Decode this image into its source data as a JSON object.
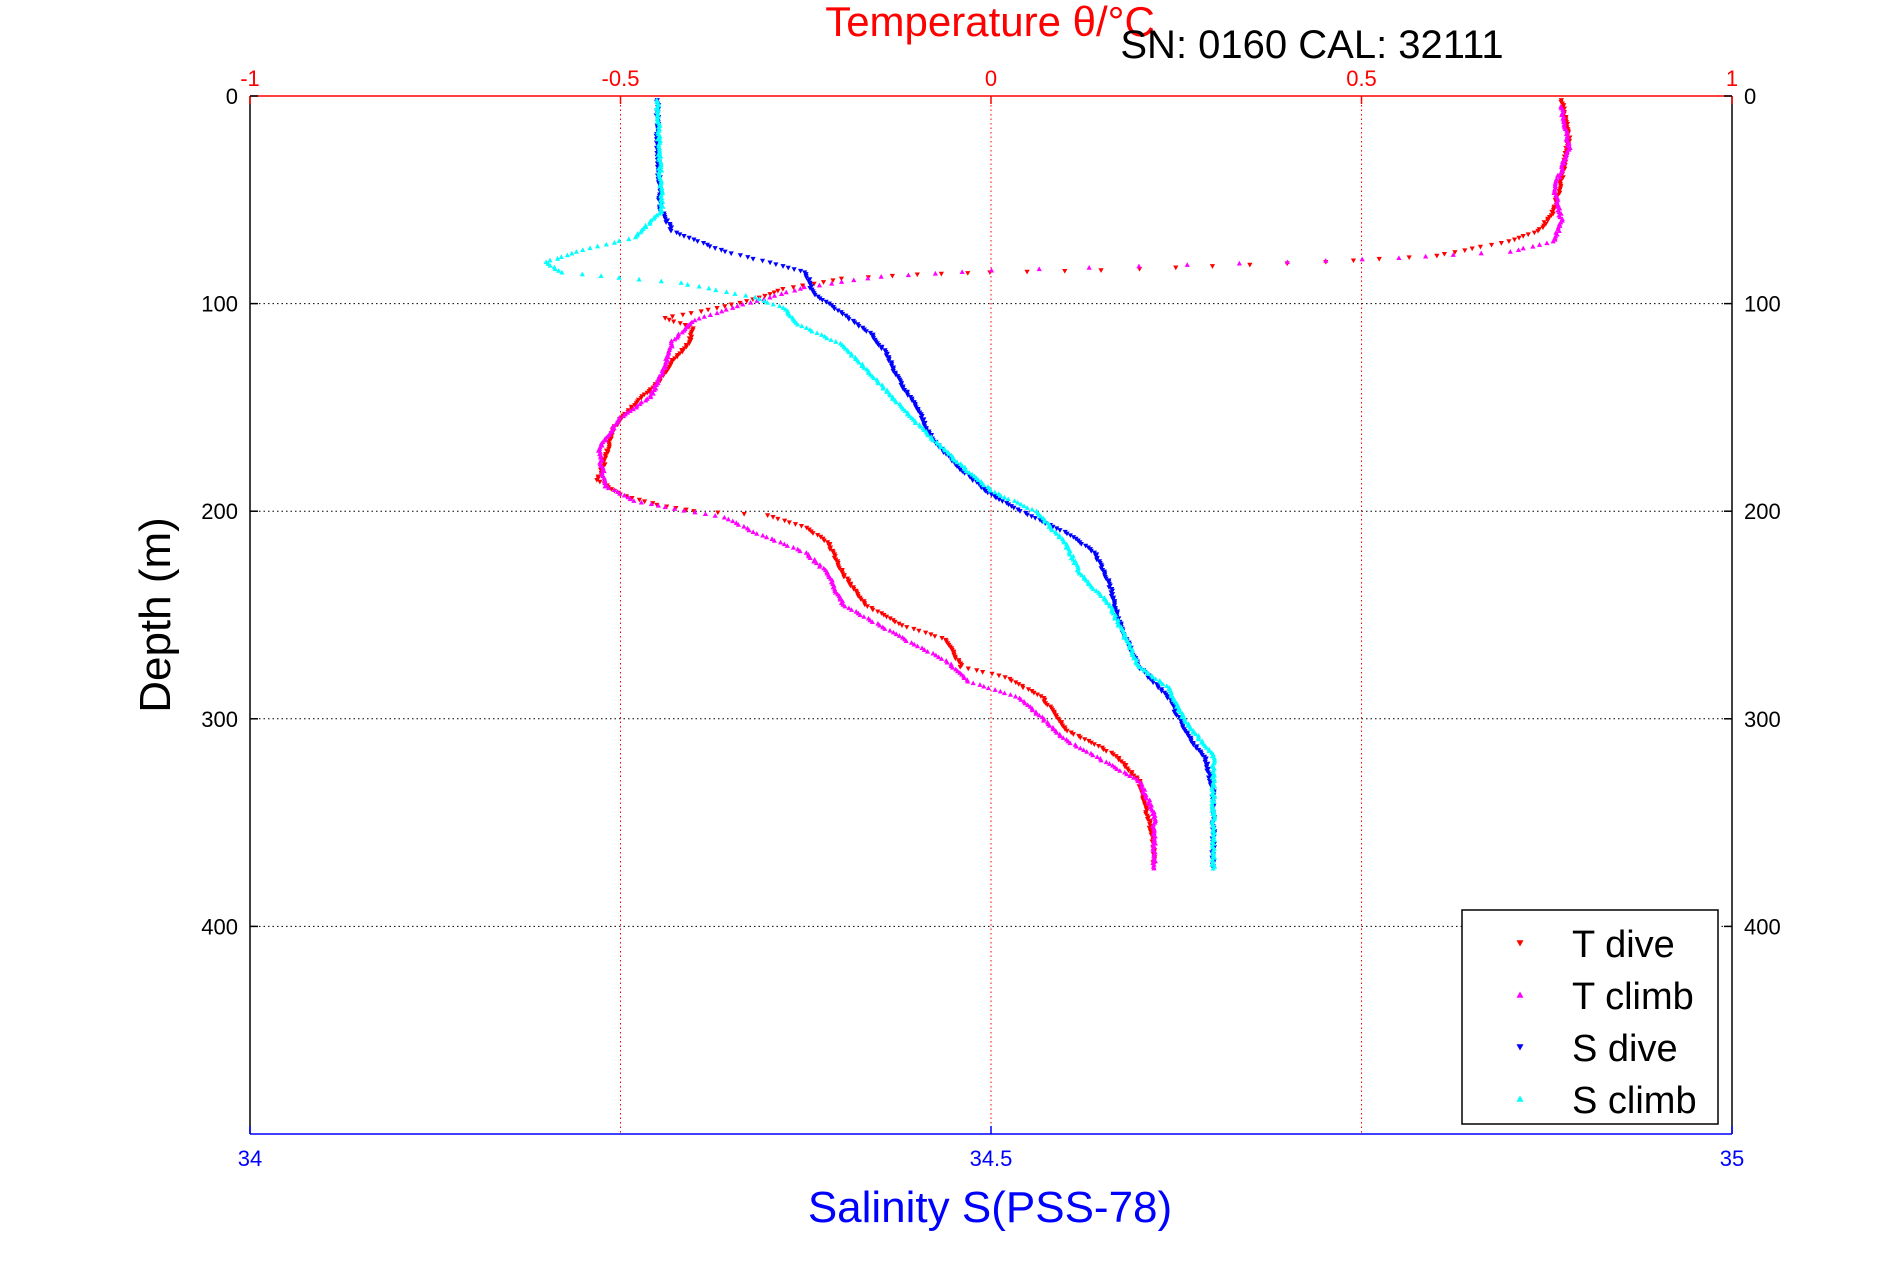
{
  "chart_data": {
    "type": "scatter",
    "title": "Temperature θ/°C",
    "subtitle": "SN: 0160  CAL: 32111",
    "xlabel": "Salinity S(PSS-78)",
    "ylabel": "Depth (m)",
    "x_bottom": {
      "label": "Salinity S(PSS-78)",
      "range": [
        34,
        35
      ],
      "ticks": [
        "34",
        "34.5",
        "35"
      ],
      "tick_values": [
        34,
        34.5,
        35
      ]
    },
    "x_top": {
      "label": "Temperature θ/°C",
      "range": [
        -1,
        1
      ],
      "ticks": [
        "-1",
        "-0.5",
        "0",
        "0.5",
        "1"
      ],
      "tick_values": [
        -1,
        -0.5,
        0,
        0.5,
        1
      ]
    },
    "y": {
      "label": "Depth (m)",
      "range": [
        0,
        500
      ],
      "reversed": true,
      "ticks": [
        "0",
        "100",
        "200",
        "300",
        "400"
      ],
      "tick_values": [
        0,
        100,
        200,
        300,
        400
      ]
    },
    "grid": true,
    "legend_position": "bottom-right",
    "series": [
      {
        "name": "T dive",
        "axis": "temperature",
        "color": "#ff0000",
        "marker": "triangle-down",
        "points": [
          [
            0.77,
            2
          ],
          [
            0.78,
            20
          ],
          [
            0.77,
            40
          ],
          [
            0.76,
            55
          ],
          [
            0.74,
            65
          ],
          [
            0.7,
            70
          ],
          [
            0.6,
            77
          ],
          [
            0.45,
            80
          ],
          [
            0.3,
            82
          ],
          [
            0.15,
            84
          ],
          [
            0.0,
            85
          ],
          [
            -0.1,
            86
          ],
          [
            -0.2,
            88
          ],
          [
            -0.28,
            93
          ],
          [
            -0.32,
            98
          ],
          [
            -0.38,
            103
          ],
          [
            -0.44,
            107
          ],
          [
            -0.4,
            112
          ],
          [
            -0.41,
            120
          ],
          [
            -0.43,
            128
          ],
          [
            -0.45,
            138
          ],
          [
            -0.48,
            148
          ],
          [
            -0.51,
            160
          ],
          [
            -0.52,
            175
          ],
          [
            -0.53,
            185
          ],
          [
            -0.5,
            192
          ],
          [
            -0.45,
            197
          ],
          [
            -0.4,
            200
          ],
          [
            -0.3,
            202
          ],
          [
            -0.25,
            208
          ],
          [
            -0.22,
            215
          ],
          [
            -0.2,
            230
          ],
          [
            -0.17,
            245
          ],
          [
            -0.12,
            255
          ],
          [
            -0.06,
            262
          ],
          [
            -0.04,
            275
          ],
          [
            0.02,
            280
          ],
          [
            0.07,
            290
          ],
          [
            0.1,
            305
          ],
          [
            0.17,
            318
          ],
          [
            0.2,
            330
          ],
          [
            0.21,
            345
          ],
          [
            0.22,
            360
          ],
          [
            0.22,
            370
          ]
        ]
      },
      {
        "name": "T climb",
        "axis": "temperature",
        "color": "#ff00ff",
        "marker": "triangle-up",
        "points": [
          [
            0.77,
            5
          ],
          [
            0.78,
            25
          ],
          [
            0.76,
            45
          ],
          [
            0.77,
            60
          ],
          [
            0.76,
            70
          ],
          [
            0.7,
            75
          ],
          [
            0.55,
            78
          ],
          [
            0.4,
            80
          ],
          [
            0.2,
            82
          ],
          [
            0.0,
            84
          ],
          [
            -0.15,
            87
          ],
          [
            -0.25,
            92
          ],
          [
            -0.3,
            97
          ],
          [
            -0.35,
            102
          ],
          [
            -0.4,
            108
          ],
          [
            -0.43,
            118
          ],
          [
            -0.44,
            130
          ],
          [
            -0.46,
            145
          ],
          [
            -0.5,
            155
          ],
          [
            -0.53,
            170
          ],
          [
            -0.52,
            188
          ],
          [
            -0.48,
            195
          ],
          [
            -0.44,
            198
          ],
          [
            -0.36,
            203
          ],
          [
            -0.32,
            210
          ],
          [
            -0.25,
            220
          ],
          [
            -0.22,
            230
          ],
          [
            -0.2,
            245
          ],
          [
            -0.15,
            255
          ],
          [
            -0.1,
            265
          ],
          [
            -0.06,
            272
          ],
          [
            -0.03,
            282
          ],
          [
            0.04,
            290
          ],
          [
            0.07,
            300
          ],
          [
            0.1,
            310
          ],
          [
            0.15,
            320
          ],
          [
            0.2,
            330
          ],
          [
            0.22,
            345
          ],
          [
            0.22,
            360
          ],
          [
            0.22,
            372
          ]
        ]
      },
      {
        "name": "S dive",
        "axis": "salinity",
        "color": "#0000ff",
        "marker": "triangle-down",
        "points": [
          [
            34.275,
            2
          ],
          [
            34.275,
            20
          ],
          [
            34.276,
            40
          ],
          [
            34.277,
            55
          ],
          [
            34.285,
            65
          ],
          [
            34.32,
            75
          ],
          [
            34.36,
            82
          ],
          [
            34.375,
            85
          ],
          [
            34.38,
            95
          ],
          [
            34.4,
            105
          ],
          [
            34.42,
            115
          ],
          [
            34.43,
            125
          ],
          [
            34.44,
            140
          ],
          [
            34.45,
            150
          ],
          [
            34.46,
            165
          ],
          [
            34.48,
            180
          ],
          [
            34.5,
            192
          ],
          [
            34.52,
            200
          ],
          [
            34.55,
            210
          ],
          [
            34.57,
            220
          ],
          [
            34.58,
            235
          ],
          [
            34.585,
            250
          ],
          [
            34.59,
            260
          ],
          [
            34.6,
            275
          ],
          [
            34.62,
            290
          ],
          [
            34.63,
            305
          ],
          [
            34.645,
            320
          ],
          [
            34.65,
            335
          ],
          [
            34.65,
            350
          ],
          [
            34.65,
            372
          ]
        ]
      },
      {
        "name": "S climb",
        "axis": "salinity",
        "color": "#00ffff",
        "marker": "triangle-up",
        "points": [
          [
            34.275,
            2
          ],
          [
            34.276,
            20
          ],
          [
            34.277,
            40
          ],
          [
            34.278,
            55
          ],
          [
            34.26,
            68
          ],
          [
            34.22,
            75
          ],
          [
            34.2,
            80
          ],
          [
            34.21,
            85
          ],
          [
            34.29,
            90
          ],
          [
            34.34,
            97
          ],
          [
            34.36,
            102
          ],
          [
            34.37,
            110
          ],
          [
            34.4,
            120
          ],
          [
            34.42,
            135
          ],
          [
            34.44,
            150
          ],
          [
            34.46,
            165
          ],
          [
            34.48,
            178
          ],
          [
            34.5,
            190
          ],
          [
            34.53,
            200
          ],
          [
            34.55,
            215
          ],
          [
            34.56,
            230
          ],
          [
            34.58,
            245
          ],
          [
            34.59,
            260
          ],
          [
            34.6,
            275
          ],
          [
            34.62,
            285
          ],
          [
            34.63,
            300
          ],
          [
            34.65,
            318
          ],
          [
            34.65,
            335
          ],
          [
            34.65,
            350
          ],
          [
            34.65,
            372
          ]
        ]
      }
    ],
    "legend": [
      "T dive",
      "T climb",
      "S dive",
      "S climb"
    ]
  }
}
